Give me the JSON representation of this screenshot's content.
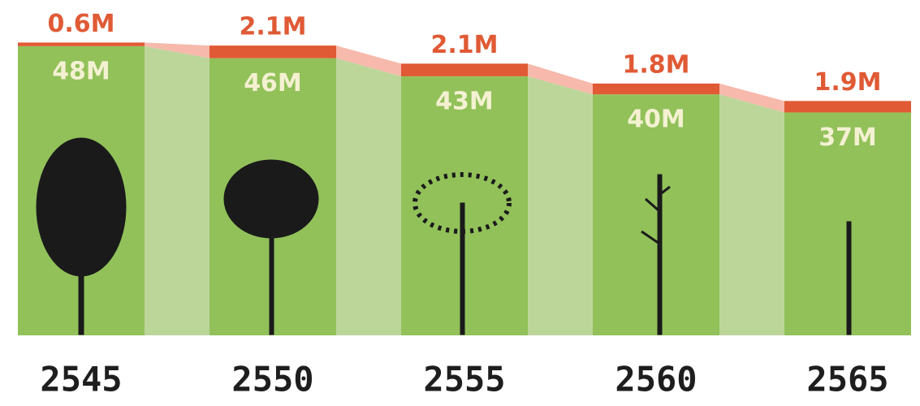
{
  "chart_data": {
    "type": "stacked-bar",
    "categories": [
      "2545",
      "2550",
      "2555",
      "2560",
      "2565"
    ],
    "series": [
      {
        "color": "#92c15a",
        "connector_color": "#bcd69a",
        "values": [
          48,
          46,
          43,
          40,
          37
        ],
        "value_labels": [
          "48M",
          "46M",
          "43M",
          "40M",
          "37M"
        ],
        "label_color": "#f4f1d2"
      },
      {
        "color": "#e05a35",
        "connector_color": "#f6b9ab",
        "values": [
          0.6,
          2.1,
          2.1,
          1.8,
          1.9
        ],
        "value_labels": [
          "0.6M",
          "2.1M",
          "2.1M",
          "1.8M",
          "1.9M"
        ],
        "label_color": "#e05a35"
      }
    ],
    "ylim": [
      0,
      50
    ]
  }
}
